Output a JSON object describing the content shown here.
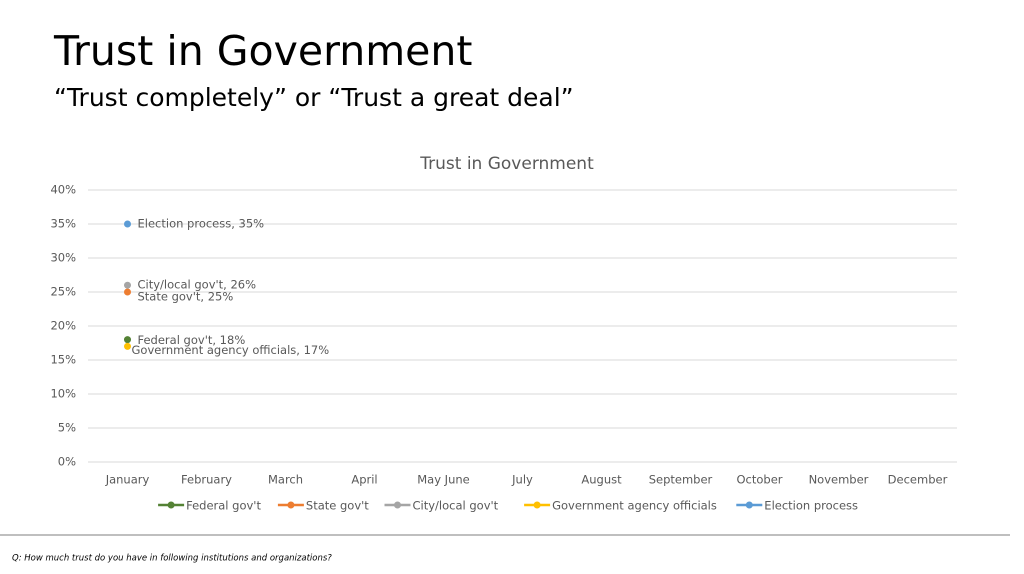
{
  "slide": {
    "title": "Trust in Government",
    "subtitle": "“Trust completely” or “Trust a great deal”",
    "footnote": "Q: How much trust do you have in following institutions and organizations?"
  },
  "chart_data": {
    "type": "line",
    "title": "Trust in Government",
    "categories": [
      "January",
      "February",
      "March",
      "April",
      "May June",
      "July",
      "August",
      "September",
      "October",
      "November",
      "December"
    ],
    "series": [
      {
        "name": "Federal gov't",
        "color": "#548235",
        "values": [
          18,
          null,
          null,
          null,
          null,
          null,
          null,
          null,
          null,
          null,
          null
        ],
        "value_labels": [
          "Federal gov't, 18%",
          null,
          null,
          null,
          null,
          null,
          null,
          null,
          null,
          null,
          null
        ]
      },
      {
        "name": "State gov't",
        "color": "#ed7d31",
        "values": [
          25,
          null,
          null,
          null,
          null,
          null,
          null,
          null,
          null,
          null,
          null
        ],
        "value_labels": [
          "State gov't, 25%",
          null,
          null,
          null,
          null,
          null,
          null,
          null,
          null,
          null,
          null
        ]
      },
      {
        "name": "City/local gov't",
        "color": "#a5a5a5",
        "values": [
          26,
          null,
          null,
          null,
          null,
          null,
          null,
          null,
          null,
          null,
          null
        ],
        "value_labels": [
          "City/local gov't, 26%",
          null,
          null,
          null,
          null,
          null,
          null,
          null,
          null,
          null,
          null
        ]
      },
      {
        "name": "Government agency officials",
        "color": "#ffc000",
        "values": [
          17,
          null,
          null,
          null,
          null,
          null,
          null,
          null,
          null,
          null,
          null
        ],
        "value_labels": [
          "Government agency officials, 17%",
          null,
          null,
          null,
          null,
          null,
          null,
          null,
          null,
          null,
          null
        ]
      },
      {
        "name": "Election process",
        "color": "#5b9bd5",
        "values": [
          35,
          null,
          null,
          null,
          null,
          null,
          null,
          null,
          null,
          null,
          null
        ],
        "value_labels": [
          "Election process, 35%",
          null,
          null,
          null,
          null,
          null,
          null,
          null,
          null,
          null,
          null
        ]
      }
    ],
    "ylim": [
      0,
      40
    ],
    "yticks": [
      {
        "value": 0,
        "label": "0%"
      },
      {
        "value": 5,
        "label": "5%"
      },
      {
        "value": 10,
        "label": "10%"
      },
      {
        "value": 15,
        "label": "15%"
      },
      {
        "value": 20,
        "label": "20%"
      },
      {
        "value": 25,
        "label": "25%"
      },
      {
        "value": 30,
        "label": "30%"
      },
      {
        "value": 35,
        "label": "35%"
      },
      {
        "value": 40,
        "label": "40%"
      }
    ],
    "grid": true,
    "legend": "bottom"
  }
}
